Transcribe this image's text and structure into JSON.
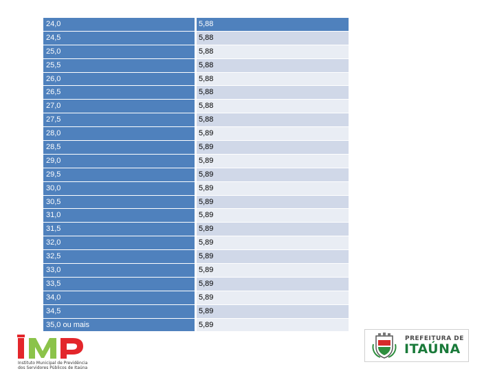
{
  "rows": [
    {
      "a": "24,0",
      "b": "5,88"
    },
    {
      "a": "24,5",
      "b": "5,88"
    },
    {
      "a": "25,0",
      "b": "5,88"
    },
    {
      "a": "25,5",
      "b": "5,88"
    },
    {
      "a": "26,0",
      "b": "5,88"
    },
    {
      "a": "26,5",
      "b": "5,88"
    },
    {
      "a": "27,0",
      "b": "5,88"
    },
    {
      "a": "27,5",
      "b": "5,88"
    },
    {
      "a": "28,0",
      "b": "5,89"
    },
    {
      "a": "28,5",
      "b": "5,89"
    },
    {
      "a": "29,0",
      "b": "5,89"
    },
    {
      "a": "29,5",
      "b": "5,89"
    },
    {
      "a": "30,0",
      "b": "5,89"
    },
    {
      "a": "30,5",
      "b": "5,89"
    },
    {
      "a": "31,0",
      "b": "5,89"
    },
    {
      "a": "31,5",
      "b": "5,89"
    },
    {
      "a": "32,0",
      "b": "5,89"
    },
    {
      "a": "32,5",
      "b": "5,89"
    },
    {
      "a": "33,0",
      "b": "5,89"
    },
    {
      "a": "33,5",
      "b": "5,89"
    },
    {
      "a": "34,0",
      "b": "5,89"
    },
    {
      "a": "34,5",
      "b": "5,89"
    },
    {
      "a": "35,0 ou mais",
      "b": "5,89"
    }
  ],
  "logos": {
    "imp": {
      "letters": "IMP",
      "line1": "Instituto Municipal de Previdência",
      "line2": "dos Servidores Públicos de Itaúna",
      "color_green": "#8bc34a",
      "color_red": "#e3262b"
    },
    "itauna": {
      "top": "PREFEITURA DE",
      "main": "ITAÚNA"
    }
  },
  "colors": {
    "header_blue": "#4f81bd",
    "band_dark": "#d0d8e8",
    "band_light": "#e9edf4"
  }
}
